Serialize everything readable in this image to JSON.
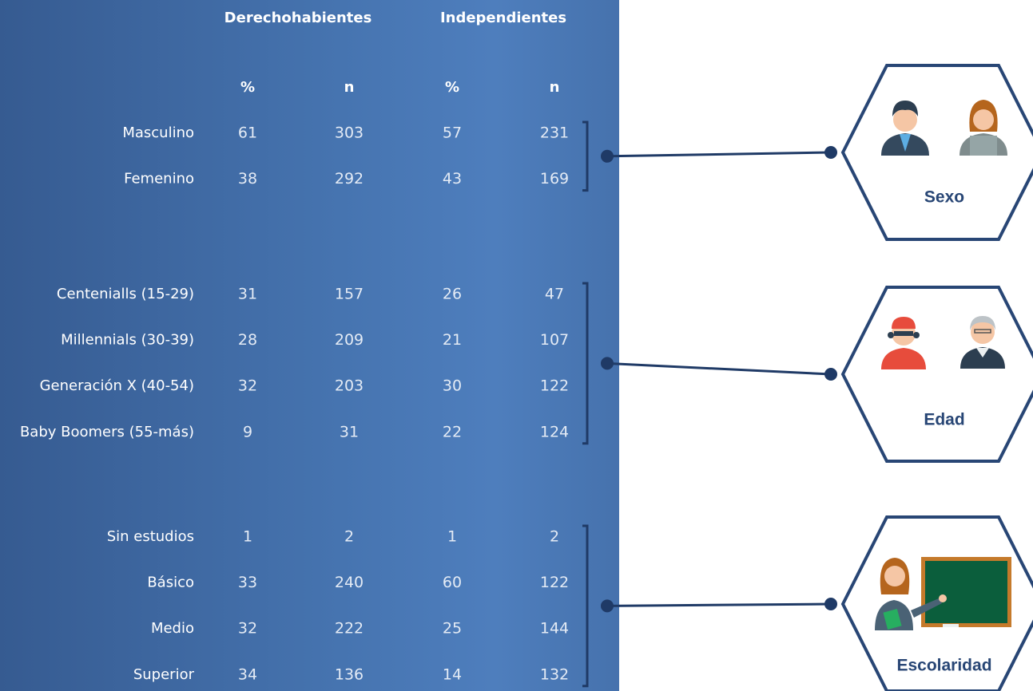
{
  "table": {
    "headers": [
      "Derechohabientes",
      "Independientes"
    ],
    "subheaders": [
      "%",
      "n",
      "%",
      "n"
    ],
    "groups": [
      {
        "label": "Sexo",
        "rows": [
          {
            "label": "Masculino",
            "values": [
              61,
              303,
              57,
              231
            ]
          },
          {
            "label": "Femenino",
            "values": [
              38,
              292,
              43,
              169
            ]
          }
        ]
      },
      {
        "label": "Edad",
        "rows": [
          {
            "label": "Centenialls (15-29)",
            "values": [
              31,
              157,
              26,
              47
            ]
          },
          {
            "label": "Millennials (30-39)",
            "values": [
              28,
              209,
              21,
              107
            ]
          },
          {
            "label": "Generación X (40-54)",
            "values": [
              32,
              203,
              30,
              122
            ]
          },
          {
            "label": "Baby Boomers (55-más)",
            "values": [
              9,
              31,
              22,
              124
            ]
          }
        ]
      },
      {
        "label": "Escolaridad",
        "rows": [
          {
            "label": "Sin estudios",
            "values": [
              1,
              2,
              1,
              2
            ]
          },
          {
            "label": "Básico",
            "values": [
              33,
              240,
              60,
              122
            ]
          },
          {
            "label": "Medio",
            "values": [
              32,
              222,
              25,
              144
            ]
          },
          {
            "label": "Superior",
            "values": [
              34,
              136,
              14,
              132
            ]
          }
        ]
      }
    ]
  }
}
